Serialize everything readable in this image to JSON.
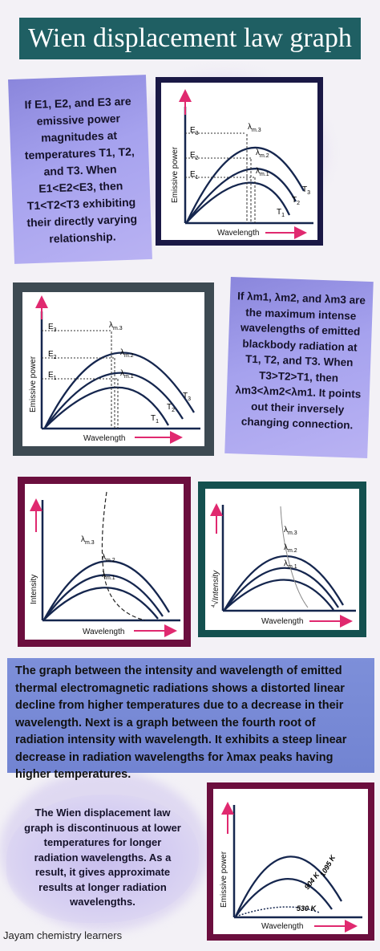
{
  "title": "Wien displacement law graph",
  "card1_text": "If E1, E2, and E3 are emissive power magnitudes at temperatures T1, T2, and T3. When E1<E2<E3, then T1<T2<T3 exhibiting their directly varying relationship.",
  "card2_text": "If λm1, λm2, and λm3 are the maximum intense wavelengths of emitted blackbody radiation at T1, T2, and T3. When T3>T2>T1, then λm3<λm2<λm1. It points out their inversely changing connection.",
  "blue_text": "The graph between the intensity and wavelength of emitted thermal electromagnetic radiations shows a distorted linear decline from higher temperatures due to a decrease in their wavelength. Next is a graph between the fourth root of radiation intensity with wavelength. It exhibits a steep linear decrease in radiation wavelengths for λmax peaks having higher temperatures.",
  "card3_text": "The Wien displacement law graph is discontinuous at lower temperatures for longer radiation wavelengths. As a result, it gives approximate results at longer radiation wavelengths.",
  "credit": "Jayam chemistry learners",
  "graph1": {
    "ylabel": "Emissive power",
    "xlabel": "Wavelength",
    "e3": "E",
    "e3_sub": "3",
    "e2": "E",
    "e2_sub": "2",
    "e1": "E",
    "e1_sub": "1",
    "lm3": "λ",
    "lm3_sub": "m.3",
    "lm2": "λ",
    "lm2_sub": "m.2",
    "lm1": "λ",
    "lm1_sub": "m.1",
    "t3": "T",
    "t3_sub": "3",
    "t2": "T",
    "t2_sub": "2",
    "t1": "T",
    "t1_sub": "1"
  },
  "graph2": {
    "ylabel": "Emissive power",
    "xlabel": "Wavelength",
    "e3": "E",
    "e3_sub": "3",
    "e2": "E",
    "e2_sub": "2",
    "e1": "E",
    "e1_sub": "1",
    "lm3": "λ",
    "lm3_sub": "m.3",
    "lm2": "λ",
    "lm2_sub": "m.2",
    "lm1": "λ",
    "lm1_sub": "m.1",
    "t3": "T",
    "t3_sub": "3",
    "t2": "T",
    "t2_sub": "2",
    "t1": "T",
    "t1_sub": "1"
  },
  "graph3": {
    "ylabel": "Intensity",
    "xlabel": "Wavelength",
    "lm3": "λ",
    "lm3_sub": "m.3",
    "lm2": "λ",
    "lm2_sub": "m.2",
    "lm1": "λ",
    "lm1_sub": "m.1"
  },
  "graph4": {
    "ylabel": "Intensity",
    "root_index": "4",
    "xlabel": "Wavelength",
    "lm3": "λ",
    "lm3_sub": "m.3",
    "lm2": "λ",
    "lm2_sub": "m.2",
    "lm1": "λ",
    "lm1_sub": "m.1"
  },
  "graph5": {
    "ylabel": "Emissive power",
    "xlabel": "Wavelength",
    "t_high": "1095 K",
    "t_mid": "904 K",
    "t_low": "530 K"
  },
  "colors": {
    "banner": "#1f5f63",
    "navy_frame": "#1a1845",
    "slate_frame": "#3d4a52",
    "maroon_frame": "#6b0e3e",
    "teal_frame": "#14504f",
    "curve": "#15264e",
    "arrow": "#e0296f"
  }
}
